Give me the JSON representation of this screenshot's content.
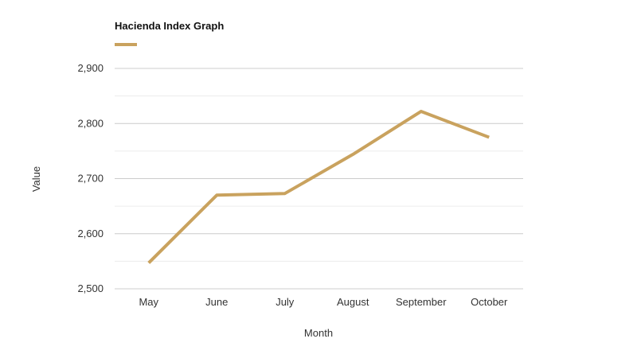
{
  "chart_data": {
    "type": "line",
    "title": "Hacienda Index Graph",
    "xlabel": "Month",
    "ylabel": "Value",
    "categories": [
      "May",
      "June",
      "July",
      "August",
      "September",
      "October"
    ],
    "series": [
      {
        "name": "Hacienda Index Graph",
        "color": "#c9a25e",
        "values": [
          2547,
          2670,
          2673,
          2744,
          2822,
          2775
        ]
      }
    ],
    "ylim": [
      2500,
      2900
    ],
    "yticks": [
      2500,
      2600,
      2700,
      2800,
      2900
    ],
    "ytick_labels": [
      "2,500",
      "2,600",
      "2,700",
      "2,800",
      "2,900"
    ],
    "grid": true,
    "legend_position": "top-left"
  }
}
